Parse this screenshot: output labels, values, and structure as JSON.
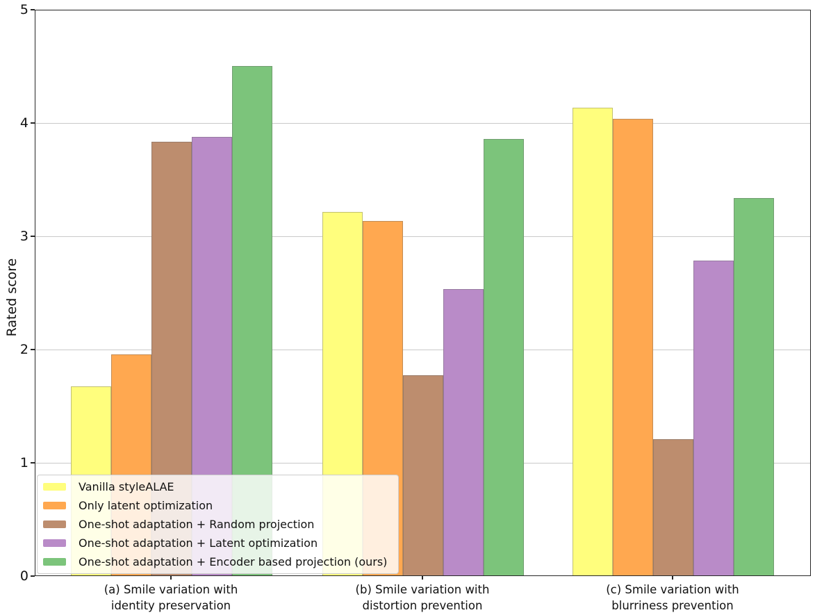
{
  "figure": {
    "background": "#ffffff",
    "text_color": "#111111",
    "gridline_color": "#c9c9c9",
    "spine_color": "#262626"
  },
  "chart_data": {
    "type": "bar",
    "title": "",
    "xlabel": "",
    "ylabel": "Rated score",
    "ylim": [
      0,
      5
    ],
    "yticks": [
      0,
      1,
      2,
      3,
      4,
      5
    ],
    "grid": "horizontal",
    "legend_position": "lower left",
    "categories": [
      {
        "line1": "(a) Smile variation with",
        "line2": "identity preservation"
      },
      {
        "line1": "(b) Smile variation with",
        "line2": "distortion prevention"
      },
      {
        "line1": "(c) Smile variation with",
        "line2": "blurriness prevention"
      }
    ],
    "series": [
      {
        "name": "Vanilla styleALAE",
        "color": "#FFFE7D",
        "values": [
          1.67,
          3.21,
          4.13
        ]
      },
      {
        "name": "Only latent optimization",
        "color": "#FFA850",
        "values": [
          1.95,
          3.13,
          4.03
        ]
      },
      {
        "name": "One-shot adaptation + Random projection",
        "color": "#BD8D6E",
        "values": [
          3.83,
          1.77,
          1.2
        ]
      },
      {
        "name": "One-shot adaptation + Latent optimization",
        "color": "#B98BC8",
        "values": [
          3.87,
          2.53,
          2.78
        ]
      },
      {
        "name": "One-shot adaptation + Encoder based projection (ours)",
        "color": "#7CC47B",
        "values": [
          4.5,
          3.85,
          3.33
        ]
      }
    ]
  }
}
